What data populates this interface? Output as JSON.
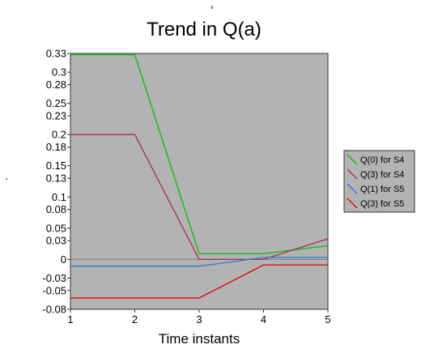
{
  "chart_data": {
    "type": "line",
    "title": "Trend in Q(a)",
    "xlabel": "Time instants",
    "ylabel": "",
    "x": [
      1,
      2,
      3,
      4,
      5
    ],
    "xlim": [
      1,
      5
    ],
    "ylim": [
      -0.08,
      0.33
    ],
    "x_ticks": [
      "1",
      "2",
      "3",
      "4",
      "5"
    ],
    "y_ticks": [
      {
        "value": 0.33,
        "label": "0.33"
      },
      {
        "value": 0.3,
        "label": "0.3"
      },
      {
        "value": 0.28,
        "label": "0.28"
      },
      {
        "value": 0.25,
        "label": "0.25"
      },
      {
        "value": 0.23,
        "label": "0.23"
      },
      {
        "value": 0.2,
        "label": "0.2"
      },
      {
        "value": 0.18,
        "label": "0.18"
      },
      {
        "value": 0.15,
        "label": "0.15"
      },
      {
        "value": 0.13,
        "label": "0.13"
      },
      {
        "value": 0.1,
        "label": "0.1"
      },
      {
        "value": 0.08,
        "label": "0.08"
      },
      {
        "value": 0.05,
        "label": "0.05"
      },
      {
        "value": 0.03,
        "label": "0.03"
      },
      {
        "value": 0,
        "label": "0"
      },
      {
        "value": -0.03,
        "label": "-0.03"
      },
      {
        "value": -0.05,
        "label": "-0.05"
      },
      {
        "value": -0.08,
        "label": "-0.08"
      }
    ],
    "grid": false,
    "legend_position": "right",
    "plot_background": "#b3b3b3",
    "zero_line_color": "#808080",
    "series": [
      {
        "name": "Q(0) for S4",
        "color": "#00c000",
        "values": [
          0.328,
          0.328,
          0.009,
          0.009,
          0.022
        ]
      },
      {
        "name": "Q(3) for S4",
        "color": "#a0305a",
        "values": [
          0.2,
          0.2,
          0.0,
          0.0,
          0.033
        ]
      },
      {
        "name": "Q(1) for S5",
        "color": "#2a78d0",
        "values": [
          -0.011,
          -0.011,
          -0.011,
          0.003,
          0.003
        ]
      },
      {
        "name": "Q(3) for S5",
        "color": "#e00000",
        "values": [
          -0.062,
          -0.062,
          -0.062,
          -0.009,
          -0.009
        ]
      }
    ]
  }
}
